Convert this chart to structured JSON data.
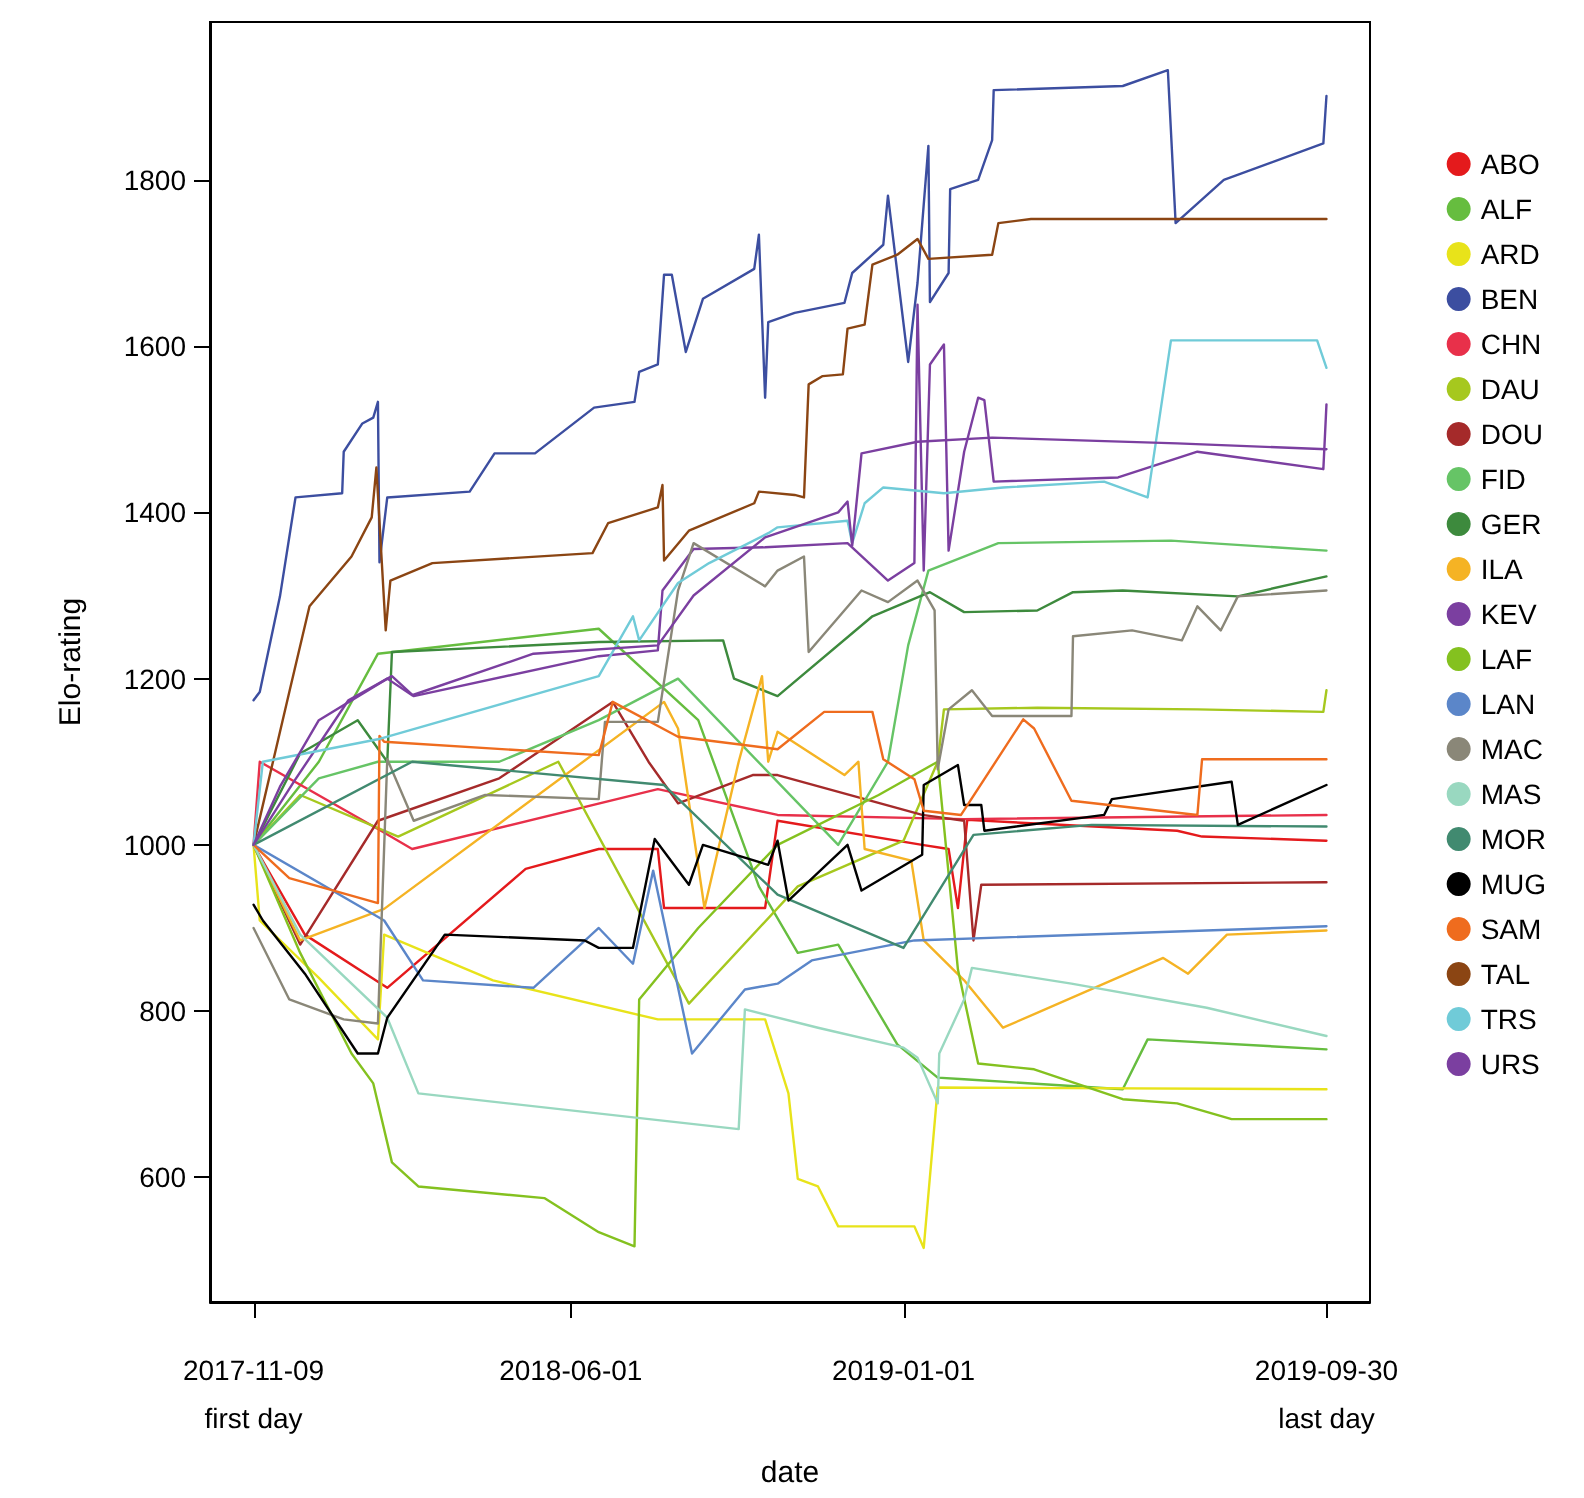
{
  "chart_data": {
    "type": "line",
    "xlabel": "date",
    "ylabel": "Elo-rating",
    "xlim": [
      "2017-10-12",
      "2019-10-28"
    ],
    "ylim": [
      450,
      1990
    ],
    "xticks": [
      {
        "value": "2017-11-09",
        "label": "2017-11-09\nfirst day"
      },
      {
        "value": "2018-06-01",
        "label": "2018-06-01"
      },
      {
        "value": "2019-01-01",
        "label": "2019-01-01"
      },
      {
        "value": "2019-09-30",
        "label": "2019-09-30\nlast day"
      }
    ],
    "yticks": [
      600,
      800,
      1000,
      1200,
      1400,
      1600,
      1800
    ],
    "grid": false,
    "legend": "top right",
    "marker": "none",
    "line_style": "solid",
    "series": [
      {
        "name": "ABO",
        "color": "#e41a1c",
        "x": [
          "2017-11-09",
          "2017-12-12",
          "2018-02-03",
          "2018-05-03",
          "2018-06-19",
          "2018-07-27",
          "2018-07-31",
          "2018-10-04",
          "2018-10-12",
          "2019-01-13",
          "2019-01-30",
          "2019-02-05",
          "2019-02-11",
          "2019-06-26",
          "2019-07-12",
          "2019-09-30"
        ],
        "values": [
          1000,
          892,
          828,
          971,
          995,
          995,
          924,
          924,
          1029,
          1000,
          995,
          924,
          1030,
          1017,
          1010,
          1005
        ]
      },
      {
        "name": "ALF",
        "color": "#66bd3f",
        "x": [
          "2017-11-09",
          "2017-12-21",
          "2018-01-28",
          "2018-06-19",
          "2018-08-22",
          "2018-09-30",
          "2018-10-25",
          "2018-11-20",
          "2018-12-28",
          "2019-01-23",
          "2019-02-09",
          "2019-05-22",
          "2019-06-07",
          "2019-09-30"
        ],
        "values": [
          1000,
          1100,
          1230,
          1260,
          1150,
          950,
          870,
          880,
          760,
          720,
          718,
          706,
          766,
          754
        ]
      },
      {
        "name": "ARD",
        "color": "#e8e31a",
        "x": [
          "2017-11-09",
          "2017-11-13",
          "2017-12-21",
          "2018-01-28",
          "2018-02-01",
          "2018-04-12",
          "2018-07-27",
          "2018-10-04",
          "2018-10-19",
          "2018-10-25",
          "2018-11-07",
          "2018-11-20",
          "2019-01-08",
          "2019-01-14",
          "2019-01-23",
          "2019-09-30"
        ],
        "values": [
          1000,
          909,
          840,
          766,
          892,
          837,
          790,
          790,
          701,
          598,
          589,
          541,
          541,
          515,
          708,
          706
        ]
      },
      {
        "name": "BEN",
        "color": "#3c4ea0",
        "x": [
          "2017-11-09",
          "2017-11-13",
          "2017-11-26",
          "2017-12-06",
          "2018-01-05",
          "2018-01-06",
          "2018-01-18",
          "2018-01-25",
          "2018-01-28",
          "2018-01-29",
          "2018-02-03",
          "2018-03-28",
          "2018-04-13",
          "2018-05-09",
          "2018-06-16",
          "2018-07-12",
          "2018-07-15",
          "2018-07-27",
          "2018-07-31",
          "2018-08-05",
          "2018-08-14",
          "2018-08-25",
          "2018-09-27",
          "2018-09-30",
          "2018-10-04",
          "2018-10-06",
          "2018-10-23",
          "2018-11-24",
          "2018-11-29",
          "2018-12-19",
          "2018-12-22",
          "2019-01-04",
          "2019-01-10",
          "2019-01-17",
          "2019-01-18",
          "2019-01-30",
          "2019-01-31",
          "2019-02-18",
          "2019-02-27",
          "2019-02-28",
          "2019-05-22",
          "2019-06-20",
          "2019-06-25",
          "2019-07-26",
          "2019-09-28",
          "2019-09-30"
        ],
        "values": [
          1174,
          1184,
          1299,
          1418,
          1423,
          1473,
          1507,
          1514,
          1533,
          1340,
          1418,
          1425,
          1471,
          1471,
          1526,
          1533,
          1569,
          1578,
          1686,
          1686,
          1593,
          1657,
          1693,
          1734,
          1538,
          1629,
          1640,
          1652,
          1688,
          1722,
          1781,
          1581,
          1676,
          1841,
          1653,
          1688,
          1789,
          1800,
          1848,
          1908,
          1913,
          1932,
          1748,
          1800,
          1844,
          1901
        ]
      },
      {
        "name": "CHN",
        "color": "#e8304a",
        "x": [
          "2017-11-09",
          "2017-11-13",
          "2018-01-28",
          "2018-02-19",
          "2018-07-27",
          "2018-10-12",
          "2019-02-09",
          "2019-09-30"
        ],
        "values": [
          1000,
          1100,
          1019,
          995,
          1067,
          1036,
          1031,
          1036
        ]
      },
      {
        "name": "DAU",
        "color": "#a6c81e",
        "x": [
          "2017-11-09",
          "2017-12-09",
          "2018-02-10",
          "2018-05-24",
          "2018-08-16",
          "2018-10-25",
          "2019-01-01",
          "2019-01-23",
          "2019-01-27",
          "2019-03-28",
          "2019-07-09",
          "2019-09-28",
          "2019-09-30"
        ],
        "values": [
          1000,
          1060,
          1010,
          1100,
          809,
          950,
          1005,
          1100,
          1163,
          1165,
          1163,
          1160,
          1186
        ]
      },
      {
        "name": "DOU",
        "color": "#a52a2a",
        "x": [
          "2017-11-09",
          "2017-12-09",
          "2018-01-28",
          "2018-04-16",
          "2018-06-28",
          "2018-07-21",
          "2018-08-09",
          "2018-09-26",
          "2018-10-12",
          "2019-01-13",
          "2019-02-09",
          "2019-02-15",
          "2019-02-20",
          "2019-09-30"
        ],
        "values": [
          1000,
          880,
          1029,
          1080,
          1172,
          1100,
          1050,
          1084,
          1084,
          1036,
          1029,
          885,
          952,
          955
        ]
      },
      {
        "name": "FID",
        "color": "#66c466",
        "x": [
          "2017-11-09",
          "2017-12-21",
          "2018-01-28",
          "2018-04-16",
          "2018-06-19",
          "2018-08-09",
          "2018-11-20",
          "2018-12-22",
          "2019-01-04",
          "2019-01-17",
          "2019-03-03",
          "2019-06-22",
          "2019-09-30"
        ],
        "values": [
          1000,
          1080,
          1100,
          1100,
          1150,
          1200,
          1000,
          1100,
          1240,
          1330,
          1363,
          1366,
          1354
        ]
      },
      {
        "name": "GER",
        "color": "#3d8a3d",
        "x": [
          "2017-11-09",
          "2017-12-09",
          "2018-01-15",
          "2018-02-03",
          "2018-02-06",
          "2018-06-19",
          "2018-09-07",
          "2018-09-14",
          "2018-10-12",
          "2018-12-12",
          "2019-01-18",
          "2019-02-09",
          "2019-03-28",
          "2019-04-20",
          "2019-05-22",
          "2019-08-04",
          "2019-09-30"
        ],
        "values": [
          1000,
          1110,
          1150,
          1100,
          1232,
          1244,
          1246,
          1200,
          1179,
          1275,
          1304,
          1280,
          1282,
          1304,
          1306,
          1299,
          1323
        ]
      },
      {
        "name": "ILA",
        "color": "#f5b324",
        "x": [
          "2017-11-09",
          "2017-12-09",
          "2018-02-01",
          "2018-07-31",
          "2018-08-09",
          "2018-08-26",
          "2018-09-17",
          "2018-10-02",
          "2018-10-06",
          "2018-10-12",
          "2018-11-24",
          "2018-12-03",
          "2018-12-07",
          "2019-01-06",
          "2019-01-14",
          "2019-02-09",
          "2019-03-06",
          "2019-06-17",
          "2019-07-03",
          "2019-07-28",
          "2019-09-30"
        ],
        "values": [
          1000,
          885,
          923,
          1172,
          1140,
          924,
          1100,
          1203,
          1100,
          1136,
          1084,
          1100,
          995,
          981,
          885,
          837,
          780,
          864,
          845,
          892,
          897
        ]
      },
      {
        "name": "KEV",
        "color": "#7b3fa0",
        "x": [
          "2017-11-09",
          "2017-12-06",
          "2018-01-09",
          "2018-02-06",
          "2018-02-20",
          "2018-06-19",
          "2018-07-27",
          "2018-07-30",
          "2018-08-19",
          "2018-10-04",
          "2018-11-26",
          "2018-12-22",
          "2019-01-08",
          "2019-01-10",
          "2019-01-14",
          "2019-01-18",
          "2019-01-27",
          "2019-01-30",
          "2019-02-09",
          "2019-02-18",
          "2019-02-22",
          "2019-02-28",
          "2019-05-19",
          "2019-07-09",
          "2019-09-28",
          "2019-09-30"
        ],
        "values": [
          1000,
          1079,
          1174,
          1203,
          1179,
          1227,
          1234,
          1306,
          1356,
          1358,
          1363,
          1318,
          1339,
          1650,
          1330,
          1578,
          1602,
          1354,
          1473,
          1538,
          1535,
          1437,
          1442,
          1473,
          1452,
          1530
        ]
      },
      {
        "name": "LAF",
        "color": "#84c11f",
        "x": [
          "2017-11-09",
          "2017-12-09",
          "2018-01-11",
          "2018-01-25",
          "2018-02-06",
          "2018-02-23",
          "2018-05-15",
          "2018-06-19",
          "2018-07-12",
          "2018-07-15",
          "2018-08-22",
          "2018-10-12",
          "2018-12-16",
          "2019-01-23",
          "2019-02-05",
          "2019-02-18",
          "2019-03-26",
          "2019-05-22",
          "2019-06-26",
          "2019-07-31",
          "2019-09-30"
        ],
        "values": [
          1000,
          870,
          749,
          713,
          618,
          589,
          575,
          534,
          517,
          814,
          900,
          1000,
          1060,
          1100,
          850,
          737,
          730,
          694,
          689,
          670,
          670
        ]
      },
      {
        "name": "LAN",
        "color": "#5b86c9",
        "x": [
          "2017-11-09",
          "2018-02-01",
          "2018-02-26",
          "2018-05-08",
          "2018-06-19",
          "2018-07-11",
          "2018-07-24",
          "2018-08-18",
          "2018-09-21",
          "2018-10-12",
          "2018-11-03",
          "2019-01-08",
          "2019-09-30"
        ],
        "values": [
          1000,
          909,
          837,
          828,
          900,
          857,
          969,
          749,
          826,
          833,
          861,
          885,
          902
        ]
      },
      {
        "name": "MAC",
        "color": "#8a8778",
        "x": [
          "2017-11-09",
          "2017-12-02",
          "2018-01-06",
          "2018-01-28",
          "2018-02-03",
          "2018-02-20",
          "2018-04-07",
          "2018-06-19",
          "2018-06-23",
          "2018-07-27",
          "2018-08-09",
          "2018-08-19",
          "2018-10-04",
          "2018-10-12",
          "2018-10-29",
          "2018-11-01",
          "2018-12-05",
          "2018-12-22",
          "2019-01-10",
          "2019-01-21",
          "2019-01-23",
          "2019-01-30",
          "2019-02-14",
          "2019-02-27",
          "2019-04-19",
          "2019-04-20",
          "2019-05-28",
          "2019-06-29",
          "2019-07-09",
          "2019-07-24",
          "2019-08-04",
          "2019-09-30"
        ],
        "values": [
          900,
          814,
          790,
          785,
          1103,
          1029,
          1060,
          1055,
          1148,
          1148,
          1306,
          1363,
          1311,
          1330,
          1347,
          1232,
          1306,
          1292,
          1318,
          1282,
          1091,
          1163,
          1186,
          1155,
          1155,
          1251,
          1258,
          1246,
          1287,
          1258,
          1299,
          1306
        ]
      },
      {
        "name": "MAS",
        "color": "#99d8c0",
        "x": [
          "2017-11-09",
          "2017-12-09",
          "2018-02-03",
          "2018-02-23",
          "2018-09-17",
          "2018-09-21",
          "2018-11-07",
          "2019-01-01",
          "2019-01-10",
          "2019-01-23",
          "2019-01-24",
          "2019-02-09",
          "2019-02-14",
          "2019-04-19",
          "2019-07-15",
          "2019-09-30"
        ],
        "values": [
          1000,
          892,
          792,
          701,
          658,
          802,
          780,
          756,
          744,
          689,
          749,
          814,
          852,
          833,
          804,
          770
        ]
      },
      {
        "name": "MOR",
        "color": "#418a70",
        "x": [
          "2017-11-09",
          "2018-02-19",
          "2018-07-31",
          "2018-10-12",
          "2019-01-01",
          "2019-02-15",
          "2019-05-02",
          "2019-09-30"
        ],
        "values": [
          1000,
          1100,
          1072,
          940,
          876,
          1012,
          1024,
          1022
        ]
      },
      {
        "name": "MUG",
        "color": "#000000",
        "x": [
          "2017-11-09",
          "2017-11-15",
          "2017-12-12",
          "2018-01-15",
          "2018-01-28",
          "2018-02-03",
          "2018-03-12",
          "2018-06-10",
          "2018-06-19",
          "2018-07-11",
          "2018-07-25",
          "2018-08-16",
          "2018-08-25",
          "2018-10-06",
          "2018-10-12",
          "2018-10-19",
          "2018-11-26",
          "2018-12-05",
          "2019-01-13",
          "2019-01-14",
          "2019-02-05",
          "2019-02-09",
          "2019-02-20",
          "2019-02-22",
          "2019-05-10",
          "2019-05-15",
          "2019-07-31",
          "2019-08-04",
          "2019-09-30"
        ],
        "values": [
          928,
          909,
          845,
          749,
          749,
          792,
          892,
          885,
          876,
          876,
          1007,
          952,
          1000,
          976,
          1005,
          933,
          1000,
          945,
          988,
          1072,
          1096,
          1048,
          1048,
          1017,
          1036,
          1055,
          1076,
          1024,
          1072
        ]
      },
      {
        "name": "SAM",
        "color": "#ef6c1e",
        "x": [
          "2017-11-09",
          "2017-12-02",
          "2018-01-28",
          "2018-01-29",
          "2018-02-01",
          "2018-06-19",
          "2018-06-28",
          "2018-08-09",
          "2018-10-12",
          "2018-11-11",
          "2018-12-12",
          "2018-12-19",
          "2019-01-08",
          "2019-01-14",
          "2019-02-07",
          "2019-03-19",
          "2019-03-26",
          "2019-04-19",
          "2019-07-09",
          "2019-07-12",
          "2019-09-30"
        ],
        "values": [
          1000,
          960,
          930,
          1131,
          1124,
          1108,
          1172,
          1130,
          1115,
          1160,
          1160,
          1103,
          1079,
          1041,
          1036,
          1151,
          1140,
          1053,
          1036,
          1103,
          1103
        ]
      },
      {
        "name": "TAL",
        "color": "#8b4513",
        "x": [
          "2017-11-09",
          "2017-12-02",
          "2017-12-15",
          "2018-01-11",
          "2018-01-24",
          "2018-01-27",
          "2018-02-02",
          "2018-02-05",
          "2018-03-04",
          "2018-06-15",
          "2018-06-25",
          "2018-07-27",
          "2018-07-30",
          "2018-07-31",
          "2018-08-16",
          "2018-09-27",
          "2018-09-30",
          "2018-10-23",
          "2018-10-29",
          "2018-11-01",
          "2018-11-10",
          "2018-11-23",
          "2018-11-26",
          "2018-12-07",
          "2018-12-12",
          "2018-12-28",
          "2019-01-10",
          "2019-01-17",
          "2019-02-27",
          "2019-03-03",
          "2019-03-24",
          "2019-09-30"
        ],
        "values": [
          1000,
          1184,
          1287,
          1347,
          1394,
          1454,
          1258,
          1318,
          1339,
          1351,
          1387,
          1406,
          1433,
          1342,
          1378,
          1411,
          1425,
          1421,
          1418,
          1554,
          1564,
          1566,
          1621,
          1626,
          1698,
          1710,
          1729,
          1705,
          1710,
          1748,
          1753,
          1753
        ]
      },
      {
        "name": "TRS",
        "color": "#70cbd8",
        "x": [
          "2017-11-09",
          "2017-11-15",
          "2018-01-28",
          "2018-06-19",
          "2018-07-11",
          "2018-07-15",
          "2018-08-09",
          "2018-08-29",
          "2018-10-06",
          "2018-10-12",
          "2018-11-26",
          "2018-11-29",
          "2018-12-07",
          "2018-12-19",
          "2019-01-27",
          "2019-03-06",
          "2019-05-10",
          "2019-06-07",
          "2019-06-22",
          "2019-09-24",
          "2019-09-30"
        ],
        "values": [
          1000,
          1100,
          1127,
          1203,
          1275,
          1246,
          1315,
          1339,
          1375,
          1382,
          1390,
          1363,
          1411,
          1430,
          1423,
          1430,
          1437,
          1418,
          1607,
          1607,
          1574
        ]
      },
      {
        "name": "URS",
        "color": "#7b3fa0",
        "x": [
          "2017-11-09",
          "2017-11-26",
          "2017-12-21",
          "2018-02-03",
          "2018-02-19",
          "2018-05-08",
          "2018-07-27",
          "2018-08-19",
          "2018-10-04",
          "2018-11-20",
          "2018-11-26",
          "2018-11-29",
          "2018-12-05",
          "2019-01-10",
          "2019-02-27",
          "2019-06-26",
          "2019-09-30"
        ],
        "values": [
          1000,
          1070,
          1150,
          1200,
          1180,
          1230,
          1240,
          1300,
          1370,
          1400,
          1413,
          1360,
          1471,
          1485,
          1490,
          1483,
          1476
        ]
      }
    ]
  }
}
